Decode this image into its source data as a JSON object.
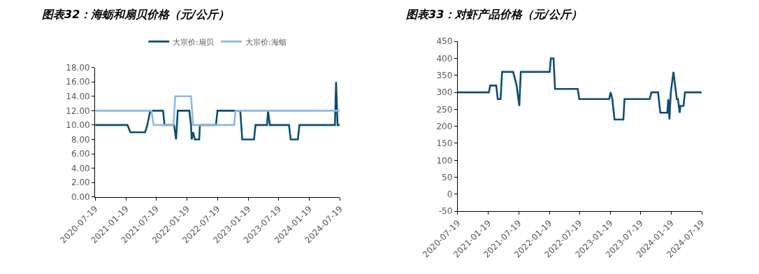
{
  "chart_data": [
    {
      "type": "line",
      "title": "图表32：海蛎和扇贝价格（元/公斤）",
      "legend": "top",
      "xlim": [
        "2020-07-19",
        "2024-07-19"
      ],
      "xticks": [
        "2020-07-19",
        "2021-01-19",
        "2021-07-19",
        "2022-01-19",
        "2022-07-19",
        "2023-01-19",
        "2023-07-19",
        "2024-01-19",
        "2024-07-19"
      ],
      "ylim": [
        0,
        18
      ],
      "yticks": [
        {
          "value": 0,
          "label": "0.00"
        },
        {
          "value": 2,
          "label": "2.00"
        },
        {
          "value": 4,
          "label": "4.00"
        },
        {
          "value": 6,
          "label": "6.00"
        },
        {
          "value": 8,
          "label": "8.00"
        },
        {
          "value": 10,
          "label": "10.00"
        },
        {
          "value": 12,
          "label": "12.00"
        },
        {
          "value": 14,
          "label": "14.00"
        },
        {
          "value": 16,
          "label": "16.00"
        },
        {
          "value": 18,
          "label": "18.00"
        }
      ],
      "series": [
        {
          "name": "大宗价:扇贝",
          "color": "#0e4d71",
          "x": [
            "2020-07-19",
            "2021-01-28",
            "2021-02-14",
            "2021-05-13",
            "2021-05-26",
            "2021-06-13",
            "2021-08-28",
            "2021-09-06",
            "2021-11-02",
            "2021-11-14",
            "2021-11-24",
            "2022-02-01",
            "2022-02-11",
            "2022-02-15",
            "2022-02-24",
            "2022-03-06",
            "2022-04-01",
            "2022-04-05",
            "2022-07-10",
            "2022-07-19",
            "2022-12-02",
            "2022-12-14",
            "2023-02-22",
            "2023-03-03",
            "2023-05-11",
            "2023-05-17",
            "2023-05-28",
            "2023-09-19",
            "2023-09-29",
            "2023-11-11",
            "2023-11-20",
            "2024-06-19",
            "2024-06-26",
            "2024-07-05",
            "2024-07-19"
          ],
          "values": [
            10,
            10,
            9,
            9,
            10,
            12,
            12,
            10,
            10,
            8,
            12,
            12,
            10,
            8,
            9,
            8,
            8,
            10,
            10,
            12,
            12,
            8,
            8,
            10,
            10,
            12,
            10,
            10,
            8,
            8,
            10,
            10,
            16,
            10,
            10
          ]
        },
        {
          "name": "大宗价:海蛎",
          "color": "#8db9de",
          "x": [
            "2020-07-19",
            "2021-06-20",
            "2021-07-03",
            "2021-10-29",
            "2021-11-09",
            "2022-02-11",
            "2022-02-24",
            "2022-10-26",
            "2022-11-04",
            "2024-07-19"
          ],
          "values": [
            12,
            12,
            10,
            10,
            14,
            14,
            10,
            10,
            12,
            12
          ]
        }
      ]
    },
    {
      "type": "line",
      "title": "图表33：对虾产品价格（元/公斤）",
      "xlim": [
        "2020-07-19",
        "2024-07-19"
      ],
      "xticks": [
        "2020-07-19",
        "2021-01-19",
        "2021-07-19",
        "2022-01-19",
        "2022-07-19",
        "2023-01-19",
        "2023-07-19",
        "2024-01-19",
        "2024-07-19"
      ],
      "ylim": [
        -50,
        450
      ],
      "yticks": [
        -50,
        0,
        50,
        100,
        150,
        200,
        250,
        300,
        350,
        400,
        450
      ],
      "series": [
        {
          "color": "#0e4d71",
          "x": [
            "2020-07-19",
            "2021-01-22",
            "2021-01-30",
            "2021-03-07",
            "2021-03-16",
            "2021-04-02",
            "2021-04-11",
            "2021-06-16",
            "2021-06-27",
            "2021-07-07",
            "2021-07-23",
            "2021-08-01",
            "2022-01-21",
            "2022-01-28",
            "2022-02-13",
            "2022-02-22",
            "2022-07-08",
            "2022-07-17",
            "2023-01-12",
            "2023-01-21",
            "2023-01-31",
            "2023-02-13",
            "2023-04-07",
            "2023-04-14",
            "2023-09-12",
            "2023-09-22",
            "2023-11-01",
            "2023-11-14",
            "2023-12-26",
            "2024-01-01",
            "2024-01-08",
            "2024-01-16",
            "2024-02-01",
            "2024-02-21",
            "2024-02-28",
            "2024-03-09",
            "2024-03-14",
            "2024-04-01",
            "2024-04-10",
            "2024-07-19"
          ],
          "values": [
            300,
            300,
            320,
            320,
            280,
            280,
            360,
            360,
            340,
            320,
            260,
            360,
            360,
            400,
            400,
            310,
            310,
            280,
            280,
            300,
            280,
            220,
            220,
            280,
            280,
            300,
            300,
            240,
            240,
            280,
            220,
            300,
            360,
            280,
            280,
            240,
            260,
            260,
            300,
            300
          ]
        }
      ]
    }
  ]
}
